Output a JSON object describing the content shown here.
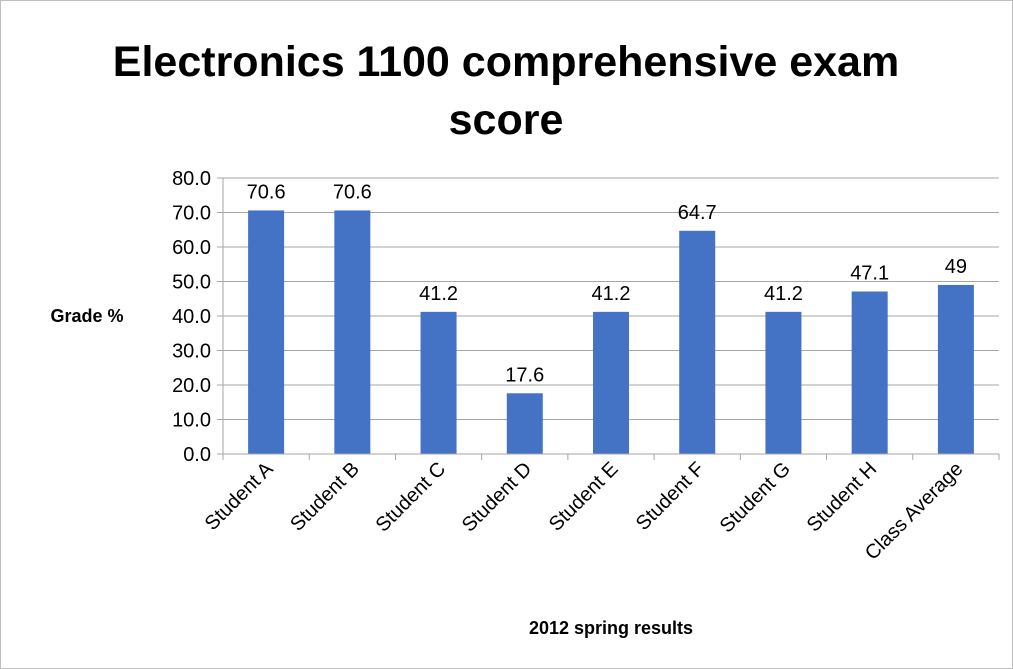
{
  "chart_data": {
    "type": "bar",
    "title_line1": "Electronics 1100 comprehensive exam",
    "title_line2": "score",
    "xlabel": "2012 spring results",
    "ylabel": "Grade %",
    "categories": [
      "Student A",
      "Student B",
      "Student C",
      "Student D",
      "Student E",
      "Student F",
      "Student G",
      "Student H",
      "Class Average"
    ],
    "values": [
      70.6,
      70.6,
      41.2,
      17.6,
      41.2,
      64.7,
      41.2,
      47.1,
      49
    ],
    "data_labels": [
      "70.6",
      "70.6",
      "41.2",
      "17.6",
      "41.2",
      "64.7",
      "41.2",
      "47.1",
      "49"
    ],
    "ylim": [
      0,
      80
    ],
    "yticks": [
      "0.0",
      "10.0",
      "20.0",
      "30.0",
      "40.0",
      "50.0",
      "60.0",
      "70.0",
      "80.0"
    ],
    "grid": true,
    "bar_color": "#4472C4"
  }
}
